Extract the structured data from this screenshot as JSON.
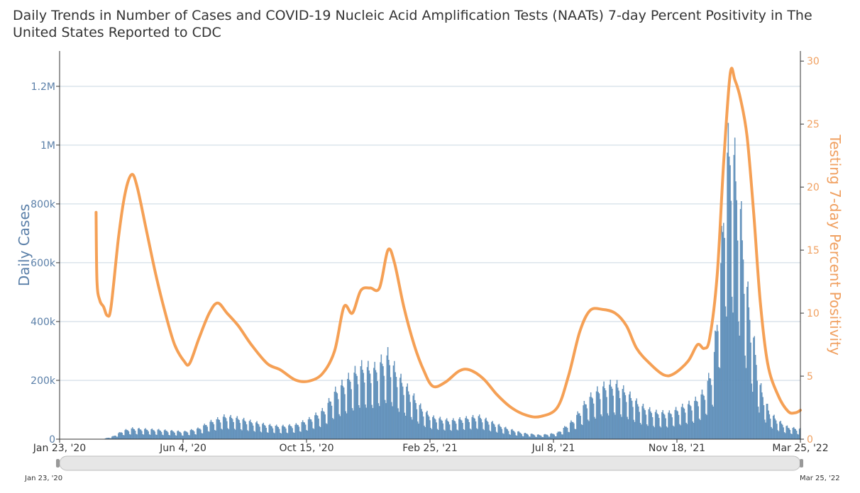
{
  "chart_data": {
    "type": "bar+line",
    "title": "Daily Trends in Number of Cases and COVID-19 Nucleic Acid Amplification Tests (NAATs) 7-day Percent Positivity in The United States Reported to CDC",
    "x_range": [
      "2020-01-23",
      "2022-03-25"
    ],
    "x_tick_labels": [
      "Jan 23, '20",
      "Jun 4, '20",
      "Oct 15, '20",
      "Feb 25, '21",
      "Jul 8, '21",
      "Nov 18, '21",
      "Mar 25, '22"
    ],
    "y_left": {
      "label": "Daily Cases",
      "range": [
        0,
        1320000
      ],
      "ticks": [
        0,
        200000,
        400000,
        600000,
        800000,
        1000000,
        1200000
      ],
      "tick_labels": [
        "0",
        "200k",
        "400k",
        "600k",
        "800k",
        "1M",
        "1.2M"
      ]
    },
    "y_right": {
      "label": "Testing 7-day Percent Positivity",
      "range": [
        0,
        30.8
      ],
      "ticks": [
        0,
        5,
        10,
        15,
        20,
        25,
        30
      ],
      "tick_labels": [
        "0",
        "5",
        "10",
        "15",
        "20",
        "25",
        "30"
      ]
    },
    "grid": true,
    "series": [
      {
        "name": "Daily Cases",
        "type": "bar",
        "axis": "left",
        "color": "#6a9ac4",
        "points": [
          [
            "2020-01-23",
            0
          ],
          [
            "2020-02-25",
            0
          ],
          [
            "2020-03-10",
            500
          ],
          [
            "2020-03-20",
            8000
          ],
          [
            "2020-03-31",
            25000
          ],
          [
            "2020-04-10",
            32000
          ],
          [
            "2020-04-20",
            30000
          ],
          [
            "2020-05-05",
            28000
          ],
          [
            "2020-05-20",
            25000
          ],
          [
            "2020-06-04",
            22000
          ],
          [
            "2020-06-20",
            32000
          ],
          [
            "2020-07-01",
            50000
          ],
          [
            "2020-07-18",
            68000
          ],
          [
            "2020-08-01",
            62000
          ],
          [
            "2020-08-15",
            52000
          ],
          [
            "2020-09-01",
            42000
          ],
          [
            "2020-09-15",
            38000
          ],
          [
            "2020-10-01",
            42000
          ],
          [
            "2020-10-15",
            58000
          ],
          [
            "2020-11-01",
            88000
          ],
          [
            "2020-11-12",
            140000
          ],
          [
            "2020-11-25",
            175000
          ],
          [
            "2020-12-10",
            215000
          ],
          [
            "2020-12-25",
            210000
          ],
          [
            "2021-01-08",
            250000
          ],
          [
            "2021-01-20",
            185000
          ],
          [
            "2021-02-01",
            140000
          ],
          [
            "2021-02-15",
            85000
          ],
          [
            "2021-02-25",
            65000
          ],
          [
            "2021-03-15",
            55000
          ],
          [
            "2021-04-01",
            62000
          ],
          [
            "2021-04-15",
            68000
          ],
          [
            "2021-05-01",
            48000
          ],
          [
            "2021-05-15",
            32000
          ],
          [
            "2021-06-01",
            18000
          ],
          [
            "2021-06-20",
            12000
          ],
          [
            "2021-07-08",
            18000
          ],
          [
            "2021-07-25",
            55000
          ],
          [
            "2021-08-10",
            120000
          ],
          [
            "2021-08-25",
            155000
          ],
          [
            "2021-09-08",
            165000
          ],
          [
            "2021-09-20",
            140000
          ],
          [
            "2021-10-05",
            100000
          ],
          [
            "2021-10-20",
            80000
          ],
          [
            "2021-11-05",
            78000
          ],
          [
            "2021-11-18",
            95000
          ],
          [
            "2021-12-01",
            110000
          ],
          [
            "2021-12-12",
            140000
          ],
          [
            "2021-12-22",
            220000
          ],
          [
            "2021-12-30",
            520000
          ],
          [
            "2022-01-04",
            820000
          ],
          [
            "2022-01-10",
            900000
          ],
          [
            "2022-01-14",
            820000
          ],
          [
            "2022-01-20",
            680000
          ],
          [
            "2022-01-27",
            450000
          ],
          [
            "2022-02-03",
            300000
          ],
          [
            "2022-02-10",
            160000
          ],
          [
            "2022-02-20",
            80000
          ],
          [
            "2022-03-01",
            55000
          ],
          [
            "2022-03-12",
            35000
          ],
          [
            "2022-03-25",
            30000
          ]
        ]
      },
      {
        "name": "Testing 7-day Percent Positivity",
        "type": "line",
        "axis": "right",
        "color": "#f5a055",
        "points": [
          [
            "2020-03-02",
            18.0
          ],
          [
            "2020-03-03",
            12.5
          ],
          [
            "2020-03-06",
            11.0
          ],
          [
            "2020-03-10",
            10.5
          ],
          [
            "2020-03-14",
            9.8
          ],
          [
            "2020-03-18",
            10.5
          ],
          [
            "2020-03-26",
            16.0
          ],
          [
            "2020-04-02",
            19.5
          ],
          [
            "2020-04-09",
            21.0
          ],
          [
            "2020-04-15",
            20.0
          ],
          [
            "2020-04-25",
            16.5
          ],
          [
            "2020-05-05",
            13.0
          ],
          [
            "2020-05-15",
            10.0
          ],
          [
            "2020-05-25",
            7.5
          ],
          [
            "2020-06-04",
            6.2
          ],
          [
            "2020-06-10",
            6.0
          ],
          [
            "2020-06-20",
            8.0
          ],
          [
            "2020-07-01",
            10.0
          ],
          [
            "2020-07-10",
            10.8
          ],
          [
            "2020-07-20",
            10.0
          ],
          [
            "2020-08-01",
            9.0
          ],
          [
            "2020-08-15",
            7.5
          ],
          [
            "2020-09-01",
            6.0
          ],
          [
            "2020-09-15",
            5.5
          ],
          [
            "2020-10-01",
            4.7
          ],
          [
            "2020-10-15",
            4.6
          ],
          [
            "2020-10-30",
            5.2
          ],
          [
            "2020-11-12",
            7.0
          ],
          [
            "2020-11-22",
            10.5
          ],
          [
            "2020-12-01",
            10.0
          ],
          [
            "2020-12-10",
            11.8
          ],
          [
            "2020-12-20",
            12.0
          ],
          [
            "2020-12-30",
            12.0
          ],
          [
            "2021-01-08",
            15.0
          ],
          [
            "2021-01-15",
            14.0
          ],
          [
            "2021-01-25",
            10.5
          ],
          [
            "2021-02-05",
            7.5
          ],
          [
            "2021-02-15",
            5.5
          ],
          [
            "2021-02-25",
            4.2
          ],
          [
            "2021-03-10",
            4.5
          ],
          [
            "2021-03-25",
            5.4
          ],
          [
            "2021-04-05",
            5.5
          ],
          [
            "2021-04-20",
            4.8
          ],
          [
            "2021-05-05",
            3.5
          ],
          [
            "2021-05-20",
            2.5
          ],
          [
            "2021-06-05",
            1.9
          ],
          [
            "2021-06-20",
            1.8
          ],
          [
            "2021-07-08",
            2.5
          ],
          [
            "2021-07-20",
            5.0
          ],
          [
            "2021-08-01",
            8.5
          ],
          [
            "2021-08-12",
            10.2
          ],
          [
            "2021-08-25",
            10.3
          ],
          [
            "2021-09-08",
            10.0
          ],
          [
            "2021-09-20",
            9.0
          ],
          [
            "2021-10-01",
            7.2
          ],
          [
            "2021-10-15",
            6.0
          ],
          [
            "2021-10-30",
            5.1
          ],
          [
            "2021-11-10",
            5.2
          ],
          [
            "2021-11-25",
            6.2
          ],
          [
            "2021-12-05",
            7.5
          ],
          [
            "2021-12-12",
            7.2
          ],
          [
            "2021-12-18",
            8.0
          ],
          [
            "2021-12-26",
            13.0
          ],
          [
            "2022-01-02",
            22.0
          ],
          [
            "2022-01-09",
            29.0
          ],
          [
            "2022-01-14",
            28.5
          ],
          [
            "2022-01-20",
            27.0
          ],
          [
            "2022-01-27",
            24.0
          ],
          [
            "2022-02-03",
            18.0
          ],
          [
            "2022-02-10",
            11.0
          ],
          [
            "2022-02-18",
            6.0
          ],
          [
            "2022-03-01",
            3.5
          ],
          [
            "2022-03-12",
            2.2
          ],
          [
            "2022-03-20",
            2.1
          ],
          [
            "2022-03-25",
            2.3
          ]
        ]
      }
    ]
  },
  "navigator": {
    "start_label": "Jan 23, '20",
    "end_label": "Mar 25, '22"
  }
}
